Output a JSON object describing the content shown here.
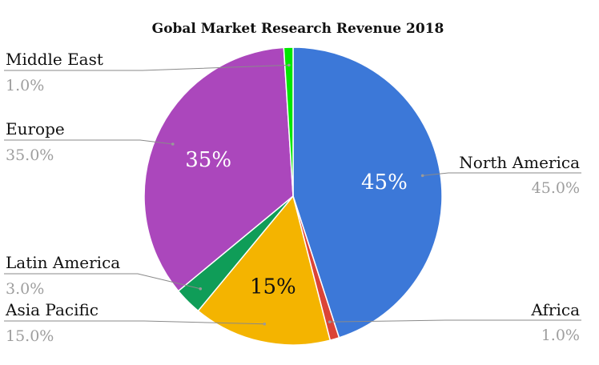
{
  "chart_data": {
    "type": "pie",
    "title": "Gobal Market Research Revenue 2018",
    "slices": [
      {
        "label": "North America",
        "value": 45.0,
        "value_label": "45.0%",
        "inner_label": "45%",
        "color": "#3c78d8"
      },
      {
        "label": "Africa",
        "value": 1.0,
        "value_label": "1.0%",
        "inner_label": "",
        "color": "#db4437"
      },
      {
        "label": "Asia Pacific",
        "value": 15.0,
        "value_label": "15.0%",
        "inner_label": "15%",
        "color": "#f4b400"
      },
      {
        "label": "Latin America",
        "value": 3.0,
        "value_label": "3.0%",
        "inner_label": "",
        "color": "#0f9d58"
      },
      {
        "label": "Europe",
        "value": 35.0,
        "value_label": "35.0%",
        "inner_label": "35%",
        "color": "#ab47bc"
      },
      {
        "label": "Middle East",
        "value": 1.0,
        "value_label": "1.0%",
        "inner_label": "",
        "color": "#00e700"
      }
    ],
    "inner_label_colors": [
      "#ffffff",
      "#ffffff",
      "#111111",
      "#ffffff",
      "#ffffff",
      "#ffffff"
    ],
    "legend": "labels-with-leader-lines"
  }
}
